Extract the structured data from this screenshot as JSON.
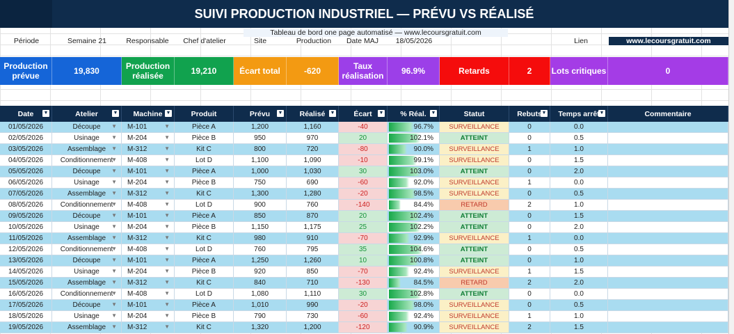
{
  "title": "SUIVI PRODUCTION INDUSTRIEL — PRÉVU VS RÉALISÉ",
  "info": {
    "subtitle": "Tableau de bord one page automatisé — www.lecoursgratuit.com",
    "periode_label": "Période",
    "periode_value": "Semaine 21",
    "responsable_label": "Responsable",
    "chef_label": "Chef d'atelier",
    "site_label": "Site",
    "production_label": "Production",
    "date_maj_label": "Date MAJ",
    "date_maj_value": "18/05/2026",
    "lien_label": "Lien",
    "lien_value": "www.lecoursgratuit.com"
  },
  "kpis": {
    "prevue_label": "Production prévue",
    "prevue_value": "19,830",
    "realisee_label": "Production réalisée",
    "realisee_value": "19,210",
    "ecart_label": "Écart total",
    "ecart_value": "-620",
    "taux_label": "Taux réalisation",
    "taux_value": "96.9%",
    "retards_label": "Retards",
    "retards_value": "2",
    "lots_label": "Lots critiques",
    "lots_value": "0",
    "colors": {
      "blue": "#1565d8",
      "green": "#11a24e",
      "orange": "#f39a12",
      "purple": "#9c3fe8",
      "red": "#f50c0c",
      "violet": "#a43ce6"
    }
  },
  "columns": [
    "Date",
    "Atelier",
    "Machine",
    "Produit",
    "Prévu",
    "Réalisé",
    "Écart",
    "% Réal.",
    "Statut",
    "Rebuts",
    "Temps arrêt",
    "Commentaire"
  ],
  "rows": [
    {
      "date": "01/05/2026",
      "atelier": "Découpe",
      "machine": "M-101",
      "produit": "Pièce A",
      "prevu": "1,200",
      "realise": "1,160",
      "ecart": "-40",
      "pct": "96.7%",
      "pctv": 0.967,
      "statut": "SURVEILLANCE",
      "rebuts": "0",
      "arret": "0.0"
    },
    {
      "date": "02/05/2026",
      "atelier": "Usinage",
      "machine": "M-204",
      "produit": "Pièce B",
      "prevu": "950",
      "realise": "970",
      "ecart": "20",
      "pct": "102.1%",
      "pctv": 1.021,
      "statut": "ATTEINT",
      "rebuts": "0",
      "arret": "0.5"
    },
    {
      "date": "03/05/2026",
      "atelier": "Assemblage",
      "machine": "M-312",
      "produit": "Kit C",
      "prevu": "800",
      "realise": "720",
      "ecart": "-80",
      "pct": "90.0%",
      "pctv": 0.9,
      "statut": "SURVEILLANCE",
      "rebuts": "1",
      "arret": "1.0"
    },
    {
      "date": "04/05/2026",
      "atelier": "Conditionnement",
      "machine": "M-408",
      "produit": "Lot D",
      "prevu": "1,100",
      "realise": "1,090",
      "ecart": "-10",
      "pct": "99.1%",
      "pctv": 0.991,
      "statut": "SURVEILLANCE",
      "rebuts": "0",
      "arret": "1.5"
    },
    {
      "date": "05/05/2026",
      "atelier": "Découpe",
      "machine": "M-101",
      "produit": "Pièce A",
      "prevu": "1,000",
      "realise": "1,030",
      "ecart": "30",
      "pct": "103.0%",
      "pctv": 1.03,
      "statut": "ATTEINT",
      "rebuts": "0",
      "arret": "2.0"
    },
    {
      "date": "06/05/2026",
      "atelier": "Usinage",
      "machine": "M-204",
      "produit": "Pièce B",
      "prevu": "750",
      "realise": "690",
      "ecart": "-60",
      "pct": "92.0%",
      "pctv": 0.92,
      "statut": "SURVEILLANCE",
      "rebuts": "1",
      "arret": "0.0"
    },
    {
      "date": "07/05/2026",
      "atelier": "Assemblage",
      "machine": "M-312",
      "produit": "Kit C",
      "prevu": "1,300",
      "realise": "1,280",
      "ecart": "-20",
      "pct": "98.5%",
      "pctv": 0.985,
      "statut": "SURVEILLANCE",
      "rebuts": "0",
      "arret": "0.5"
    },
    {
      "date": "08/05/2026",
      "atelier": "Conditionnement",
      "machine": "M-408",
      "produit": "Lot D",
      "prevu": "900",
      "realise": "760",
      "ecart": "-140",
      "pct": "84.4%",
      "pctv": 0.844,
      "statut": "RETARD",
      "rebuts": "2",
      "arret": "1.0"
    },
    {
      "date": "09/05/2026",
      "atelier": "Découpe",
      "machine": "M-101",
      "produit": "Pièce A",
      "prevu": "850",
      "realise": "870",
      "ecart": "20",
      "pct": "102.4%",
      "pctv": 1.024,
      "statut": "ATTEINT",
      "rebuts": "0",
      "arret": "1.5"
    },
    {
      "date": "10/05/2026",
      "atelier": "Usinage",
      "machine": "M-204",
      "produit": "Pièce B",
      "prevu": "1,150",
      "realise": "1,175",
      "ecart": "25",
      "pct": "102.2%",
      "pctv": 1.022,
      "statut": "ATTEINT",
      "rebuts": "0",
      "arret": "2.0"
    },
    {
      "date": "11/05/2026",
      "atelier": "Assemblage",
      "machine": "M-312",
      "produit": "Kit C",
      "prevu": "980",
      "realise": "910",
      "ecart": "-70",
      "pct": "92.9%",
      "pctv": 0.929,
      "statut": "SURVEILLANCE",
      "rebuts": "1",
      "arret": "0.0"
    },
    {
      "date": "12/05/2026",
      "atelier": "Conditionnement",
      "machine": "M-408",
      "produit": "Lot D",
      "prevu": "760",
      "realise": "795",
      "ecart": "35",
      "pct": "104.6%",
      "pctv": 1.046,
      "statut": "ATTEINT",
      "rebuts": "0",
      "arret": "0.5"
    },
    {
      "date": "13/05/2026",
      "atelier": "Découpe",
      "machine": "M-101",
      "produit": "Pièce A",
      "prevu": "1,250",
      "realise": "1,260",
      "ecart": "10",
      "pct": "100.8%",
      "pctv": 1.008,
      "statut": "ATTEINT",
      "rebuts": "0",
      "arret": "1.0"
    },
    {
      "date": "14/05/2026",
      "atelier": "Usinage",
      "machine": "M-204",
      "produit": "Pièce B",
      "prevu": "920",
      "realise": "850",
      "ecart": "-70",
      "pct": "92.4%",
      "pctv": 0.924,
      "statut": "SURVEILLANCE",
      "rebuts": "1",
      "arret": "1.5"
    },
    {
      "date": "15/05/2026",
      "atelier": "Assemblage",
      "machine": "M-312",
      "produit": "Kit C",
      "prevu": "840",
      "realise": "710",
      "ecart": "-130",
      "pct": "84.5%",
      "pctv": 0.845,
      "statut": "RETARD",
      "rebuts": "2",
      "arret": "2.0"
    },
    {
      "date": "16/05/2026",
      "atelier": "Conditionnement",
      "machine": "M-408",
      "produit": "Lot D",
      "prevu": "1,080",
      "realise": "1,110",
      "ecart": "30",
      "pct": "102.8%",
      "pctv": 1.028,
      "statut": "ATTEINT",
      "rebuts": "0",
      "arret": "0.0"
    },
    {
      "date": "17/05/2026",
      "atelier": "Découpe",
      "machine": "M-101",
      "produit": "Pièce A",
      "prevu": "1,010",
      "realise": "990",
      "ecart": "-20",
      "pct": "98.0%",
      "pctv": 0.98,
      "statut": "SURVEILLANCE",
      "rebuts": "0",
      "arret": "0.5"
    },
    {
      "date": "18/05/2026",
      "atelier": "Usinage",
      "machine": "M-204",
      "produit": "Pièce B",
      "prevu": "790",
      "realise": "730",
      "ecart": "-60",
      "pct": "92.4%",
      "pctv": 0.924,
      "statut": "SURVEILLANCE",
      "rebuts": "1",
      "arret": "1.0"
    },
    {
      "date": "19/05/2026",
      "atelier": "Assemblage",
      "machine": "M-312",
      "produit": "Kit C",
      "prevu": "1,320",
      "realise": "1,200",
      "ecart": "-120",
      "pct": "90.9%",
      "pctv": 0.909,
      "statut": "SURVEILLANCE",
      "rebuts": "2",
      "arret": "1.5"
    }
  ]
}
